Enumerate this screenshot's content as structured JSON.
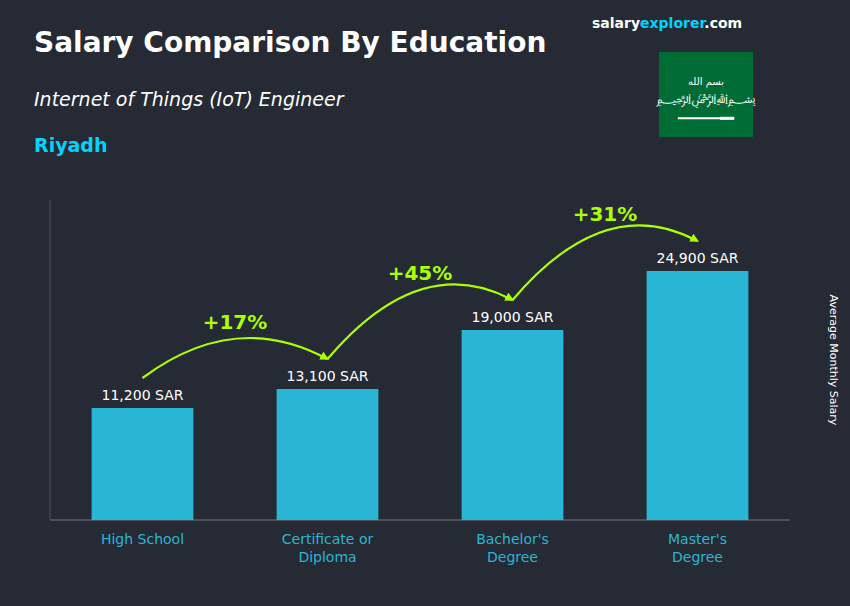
{
  "chart_data": {
    "type": "bar",
    "title": "Salary Comparison By Education",
    "subtitle": "Internet of Things (IoT) Engineer",
    "city": "Riyadh",
    "y_label": "Average Monthly Salary",
    "categories": [
      "High School",
      "Certificate or\nDiploma",
      "Bachelor's\nDegree",
      "Master's\nDegree"
    ],
    "values": [
      11200,
      13100,
      19000,
      24900
    ],
    "value_labels": [
      "11,200 SAR",
      "13,100 SAR",
      "19,000 SAR",
      "24,900 SAR"
    ],
    "data_labels": true,
    "annotations": [
      "+17%",
      "+45%",
      "+31%"
    ],
    "brand": [
      "salary",
      "explorer",
      ".com"
    ],
    "flag_texts": [
      "بسم الله",
      "﷽"
    ],
    "color": "#29b6d4",
    "annotation_color": "#aaff00",
    "city_color": "#00d4ff",
    "flag_color": "#006c35",
    "ylim": [
      0,
      32000
    ],
    "tick_labels": "x",
    "grid": false
  }
}
